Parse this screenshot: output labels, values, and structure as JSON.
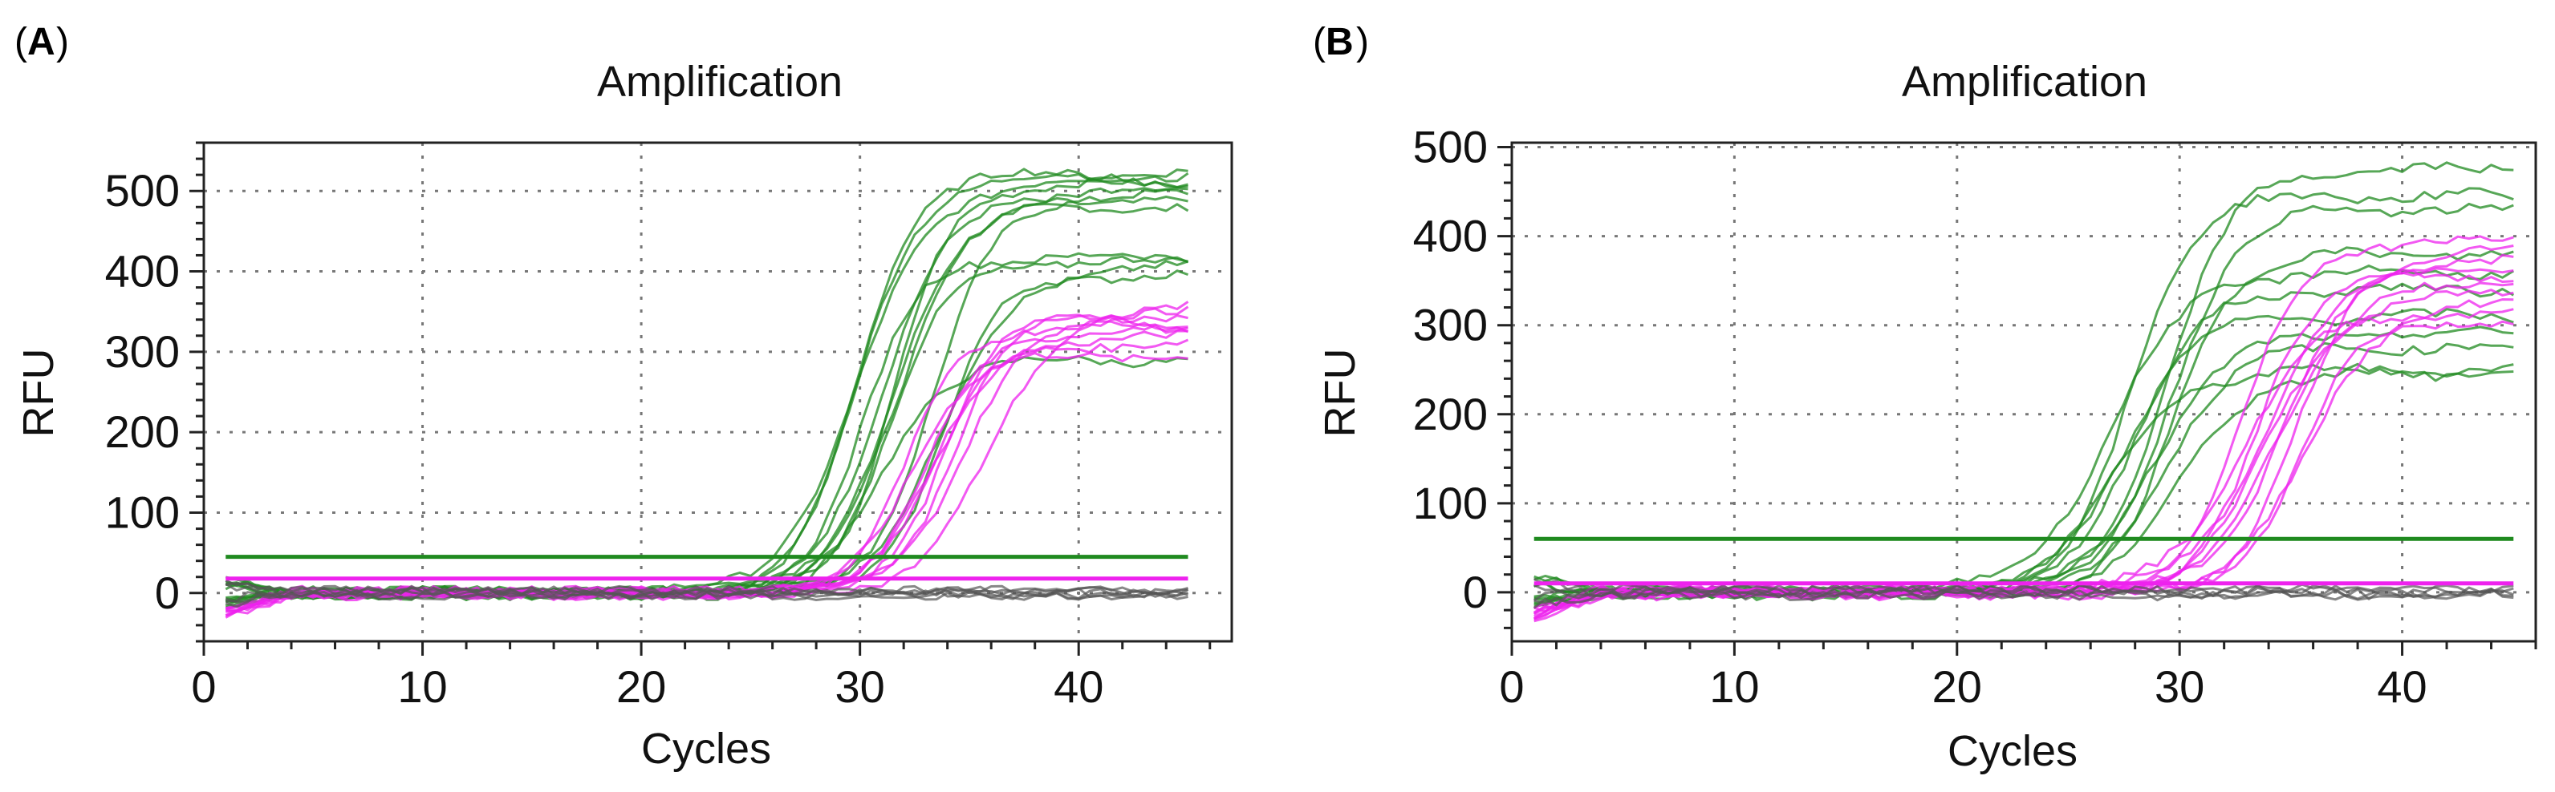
{
  "chart_data": [
    {
      "panel": "A",
      "type": "line",
      "title": "Amplification",
      "xlabel": "Cycles",
      "ylabel": "RFU",
      "xlim": [
        0,
        47
      ],
      "ylim": [
        -60,
        560
      ],
      "xticks": [
        0,
        10,
        20,
        30,
        40
      ],
      "yticks": [
        0,
        100,
        200,
        300,
        400,
        500
      ],
      "grid": true,
      "thresholds": [
        {
          "name": "green-threshold",
          "value": 45,
          "color": "#1f8a1f"
        },
        {
          "name": "magenta-threshold",
          "value": 18,
          "color": "#ee22ee"
        }
      ],
      "series": [
        {
          "name": "green-plateau-high",
          "color": "#1f8a1f",
          "ct": 31.5,
          "plateau": [
            480,
            488,
            495,
            502,
            508,
            513,
            518,
            522
          ],
          "count": 8
        },
        {
          "name": "green-plateau-low",
          "color": "#1f8a1f",
          "ct": 32.0,
          "plateau": [
            290,
            395,
            405,
            412,
            418
          ],
          "count": 5
        },
        {
          "name": "magenta-amplified",
          "color": "#ee22ee",
          "ct": 34.2,
          "plateau": [
            295,
            310,
            318,
            325,
            332,
            338,
            345,
            350,
            355
          ],
          "count": 9
        },
        {
          "name": "negative-baseline",
          "color": "#555555",
          "ct": null,
          "plateau": [
            0
          ],
          "count": 6
        }
      ]
    },
    {
      "panel": "B",
      "type": "line",
      "title": "Amplification",
      "xlabel": "Cycles",
      "ylabel": "RFU",
      "xlim": [
        0,
        46
      ],
      "ylim": [
        -55,
        505
      ],
      "xticks": [
        0,
        10,
        20,
        30,
        40
      ],
      "yticks": [
        0,
        100,
        200,
        300,
        400,
        500
      ],
      "grid": true,
      "thresholds": [
        {
          "name": "green-threshold",
          "value": 60,
          "color": "#1f8a1f"
        },
        {
          "name": "magenta-threshold",
          "value": 10,
          "color": "#ee22ee"
        }
      ],
      "series": [
        {
          "name": "green-amplified",
          "color": "#1f8a1f",
          "ct": 28.5,
          "plateau": [
            245,
            250,
            275,
            290,
            310,
            340,
            360,
            380,
            430,
            445,
            475
          ],
          "count": 11
        },
        {
          "name": "magenta-amplified",
          "color": "#ee22ee",
          "ct": 34.0,
          "plateau": [
            305,
            315,
            325,
            335,
            345,
            355,
            365,
            375,
            385,
            395
          ],
          "count": 10
        },
        {
          "name": "negative-baseline",
          "color": "#555555",
          "ct": null,
          "plateau": [
            0
          ],
          "count": 5
        }
      ]
    }
  ],
  "panels": [
    {
      "letter": "A",
      "open": "(",
      "close": ")"
    },
    {
      "letter": "B",
      "open": "(",
      "close": ")"
    }
  ]
}
